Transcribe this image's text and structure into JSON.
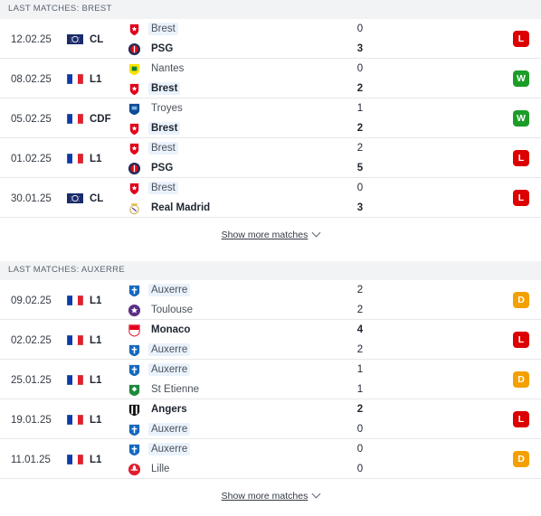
{
  "sections": [
    {
      "title": "LAST MATCHES: BREST",
      "matches": [
        {
          "date": "12.02.25",
          "comp_flag": "cl-icon",
          "comp": "CL",
          "home": {
            "name": "Brest",
            "crest": "brest-crest",
            "highlight": true,
            "winner": false
          },
          "away": {
            "name": "PSG",
            "crest": "psg-crest",
            "highlight": false,
            "winner": true
          },
          "home_score": "0",
          "away_score": "3",
          "result": "L"
        },
        {
          "date": "08.02.25",
          "comp_flag": "france-flag-icon",
          "comp": "L1",
          "home": {
            "name": "Nantes",
            "crest": "nantes-crest",
            "highlight": false,
            "winner": false
          },
          "away": {
            "name": "Brest",
            "crest": "brest-crest",
            "highlight": true,
            "winner": true
          },
          "home_score": "0",
          "away_score": "2",
          "result": "W"
        },
        {
          "date": "05.02.25",
          "comp_flag": "france-flag-icon",
          "comp": "CDF",
          "home": {
            "name": "Troyes",
            "crest": "troyes-crest",
            "highlight": false,
            "winner": false
          },
          "away": {
            "name": "Brest",
            "crest": "brest-crest",
            "highlight": true,
            "winner": true
          },
          "home_score": "1",
          "away_score": "2",
          "result": "W"
        },
        {
          "date": "01.02.25",
          "comp_flag": "france-flag-icon",
          "comp": "L1",
          "home": {
            "name": "Brest",
            "crest": "brest-crest",
            "highlight": true,
            "winner": false
          },
          "away": {
            "name": "PSG",
            "crest": "psg-crest",
            "highlight": false,
            "winner": true
          },
          "home_score": "2",
          "away_score": "5",
          "result": "L"
        },
        {
          "date": "30.01.25",
          "comp_flag": "cl-icon",
          "comp": "CL",
          "home": {
            "name": "Brest",
            "crest": "brest-crest",
            "highlight": true,
            "winner": false
          },
          "away": {
            "name": "Real Madrid",
            "crest": "real-madrid-crest",
            "highlight": false,
            "winner": true
          },
          "home_score": "0",
          "away_score": "3",
          "result": "L"
        }
      ],
      "show_more": "Show more matches"
    },
    {
      "title": "LAST MATCHES: AUXERRE",
      "matches": [
        {
          "date": "09.02.25",
          "comp_flag": "france-flag-icon",
          "comp": "L1",
          "home": {
            "name": "Auxerre",
            "crest": "auxerre-crest",
            "highlight": true,
            "winner": false
          },
          "away": {
            "name": "Toulouse",
            "crest": "toulouse-crest",
            "highlight": false,
            "winner": false
          },
          "home_score": "2",
          "away_score": "2",
          "result": "D"
        },
        {
          "date": "02.02.25",
          "comp_flag": "france-flag-icon",
          "comp": "L1",
          "home": {
            "name": "Monaco",
            "crest": "monaco-crest",
            "highlight": false,
            "winner": true
          },
          "away": {
            "name": "Auxerre",
            "crest": "auxerre-crest",
            "highlight": true,
            "winner": false
          },
          "home_score": "4",
          "away_score": "2",
          "result": "L"
        },
        {
          "date": "25.01.25",
          "comp_flag": "france-flag-icon",
          "comp": "L1",
          "home": {
            "name": "Auxerre",
            "crest": "auxerre-crest",
            "highlight": true,
            "winner": false
          },
          "away": {
            "name": "St Etienne",
            "crest": "st-etienne-crest",
            "highlight": false,
            "winner": false
          },
          "home_score": "1",
          "away_score": "1",
          "result": "D"
        },
        {
          "date": "19.01.25",
          "comp_flag": "france-flag-icon",
          "comp": "L1",
          "home": {
            "name": "Angers",
            "crest": "angers-crest",
            "highlight": false,
            "winner": true
          },
          "away": {
            "name": "Auxerre",
            "crest": "auxerre-crest",
            "highlight": true,
            "winner": false
          },
          "home_score": "2",
          "away_score": "0",
          "result": "L"
        },
        {
          "date": "11.01.25",
          "comp_flag": "france-flag-icon",
          "comp": "L1",
          "home": {
            "name": "Auxerre",
            "crest": "auxerre-crest",
            "highlight": true,
            "winner": false
          },
          "away": {
            "name": "Lille",
            "crest": "lille-crest",
            "highlight": false,
            "winner": false
          },
          "home_score": "0",
          "away_score": "0",
          "result": "D"
        }
      ],
      "show_more": "Show more matches"
    }
  ],
  "colors": {
    "loss": "#dc0000",
    "win": "#1c9d27",
    "draw": "#f3a000",
    "highlight_bg": "#eaf2fb",
    "header_bg": "#f1f3f5"
  }
}
